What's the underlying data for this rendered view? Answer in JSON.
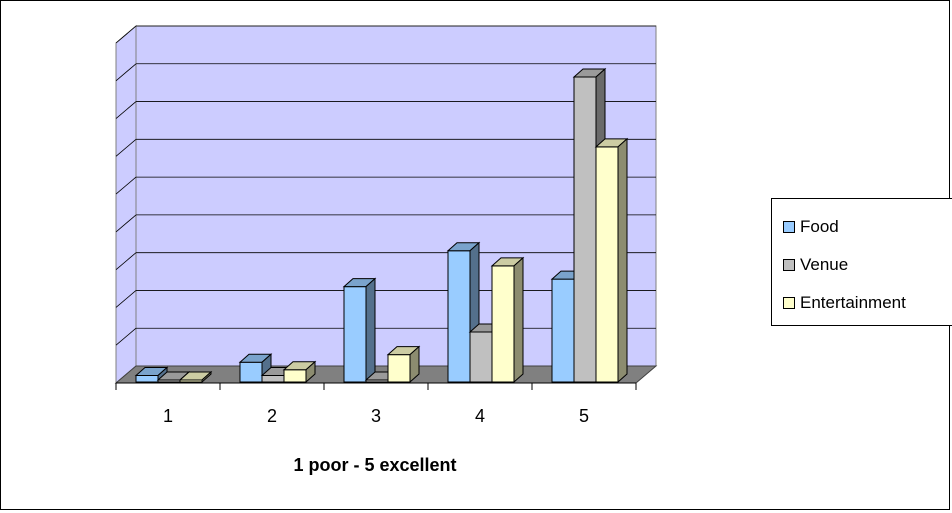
{
  "chart_data": {
    "type": "bar",
    "categories": [
      "1",
      "2",
      "3",
      "4",
      "5"
    ],
    "series": [
      {
        "name": "Food",
        "values": [
          0.2,
          0.55,
          2.55,
          3.5,
          2.75
        ],
        "color": "#99CCFF"
      },
      {
        "name": "Venue",
        "values": [
          0.0,
          0.2,
          0.0,
          1.35,
          8.1
        ],
        "color": "#C0C0C0"
      },
      {
        "name": "Entertainment",
        "values": [
          0.0,
          0.35,
          0.75,
          3.1,
          6.25
        ],
        "color": "#FFFFCC"
      }
    ],
    "title": "",
    "xlabel": "1 poor - 5 excellent",
    "ylabel": "",
    "ylim": [
      0,
      9
    ],
    "y_ticks_labeled": false,
    "grid": true,
    "legend_position": "right",
    "plot_background": "#CCCCFF",
    "floor_color": "#808080"
  },
  "legend": {
    "items": [
      {
        "label": "Food",
        "color": "#99CCFF"
      },
      {
        "label": "Venue",
        "color": "#C0C0C0"
      },
      {
        "label": "Entertainment",
        "color": "#FFFFCC"
      }
    ]
  }
}
